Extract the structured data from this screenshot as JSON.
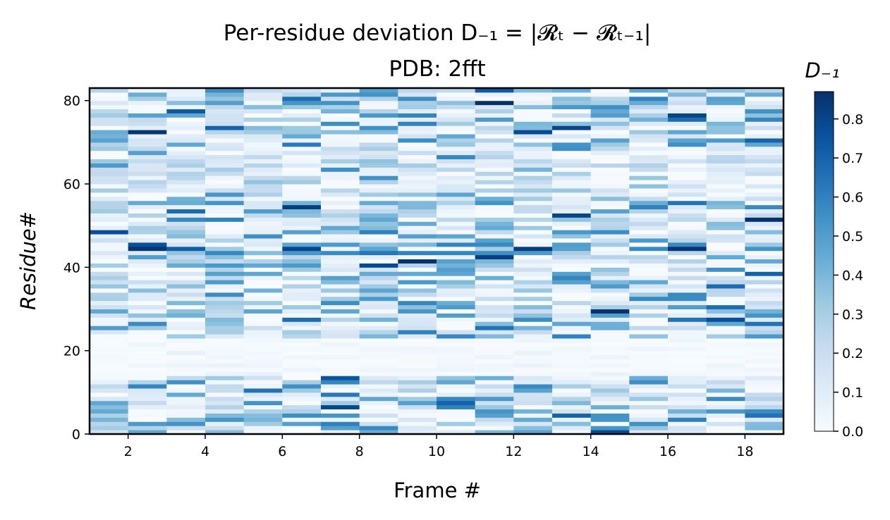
{
  "chart_data": {
    "type": "heatmap",
    "title_line1": "Per-residue deviation D₋₁ = |𝓡ₜ − 𝓡ₜ₋₁|",
    "title_line2": "PDB: 2fft",
    "xlabel": "Frame #",
    "ylabel": "Residue#",
    "colorbar_label": "D₋₁",
    "colormap": "Blues",
    "colormap_stops": [
      "#f7fbff",
      "#deebf7",
      "#c6dbef",
      "#9ecae1",
      "#6baed6",
      "#4292c6",
      "#2171b5",
      "#08519c",
      "#08306b"
    ],
    "xlim": [
      1,
      19
    ],
    "ylim": [
      0,
      83
    ],
    "x_ticks": [
      2,
      4,
      6,
      8,
      10,
      12,
      14,
      16,
      18
    ],
    "y_ticks": [
      0,
      20,
      40,
      60,
      80
    ],
    "colorbar_ticks": [
      0.0,
      0.1,
      0.2,
      0.3,
      0.4,
      0.5,
      0.6,
      0.7,
      0.8
    ],
    "colorbar_tick_labels": [
      "0.0",
      "0.1",
      "0.2",
      "0.3",
      "0.4",
      "0.5",
      "0.6",
      "0.7",
      "0.8"
    ],
    "vmin": 0.0,
    "vmax": 0.87,
    "frames": [
      1,
      2,
      3,
      4,
      5,
      6,
      7,
      8,
      9,
      10,
      11,
      12,
      13,
      14,
      15,
      16,
      17,
      18
    ],
    "residues_count": 83,
    "highlights": [
      {
        "frame": 2,
        "residue": 72,
        "value": 0.85
      },
      {
        "frame": 2,
        "residue": 44,
        "value": 0.85
      },
      {
        "frame": 6,
        "residue": 44,
        "value": 0.8
      },
      {
        "frame": 11,
        "residue": 42,
        "value": 0.82
      },
      {
        "frame": 12,
        "residue": 72,
        "value": 0.78
      },
      {
        "frame": 13,
        "residue": 73,
        "value": 0.8
      },
      {
        "frame": 13,
        "residue": 52,
        "value": 0.8
      },
      {
        "frame": 16,
        "residue": 44,
        "value": 0.85
      },
      {
        "frame": 16,
        "residue": 55,
        "value": 0.65
      },
      {
        "frame": 18,
        "residue": 70,
        "value": 0.7
      },
      {
        "frame": 18,
        "residue": 4,
        "value": 0.65
      },
      {
        "frame": 10,
        "residue": 7,
        "value": 0.7
      },
      {
        "frame": 13,
        "residue": 4,
        "value": 0.7
      },
      {
        "frame": 5,
        "residue": 10,
        "value": 0.65
      },
      {
        "frame": 4,
        "residue": 73,
        "value": 0.7
      },
      {
        "frame": 9,
        "residue": 24,
        "value": 0.6
      },
      {
        "frame": 11,
        "residue": 25,
        "value": 0.65
      },
      {
        "frame": 16,
        "residue": 27,
        "value": 0.65
      },
      {
        "frame": 18,
        "residue": 26,
        "value": 0.65
      },
      {
        "frame": 7,
        "residue": 2,
        "value": 0.6
      },
      {
        "frame": 8,
        "residue": 48,
        "value": 0.6
      },
      {
        "frame": 4,
        "residue": 51,
        "value": 0.6
      }
    ],
    "quiet_band_residues": [
      14,
      22
    ]
  }
}
